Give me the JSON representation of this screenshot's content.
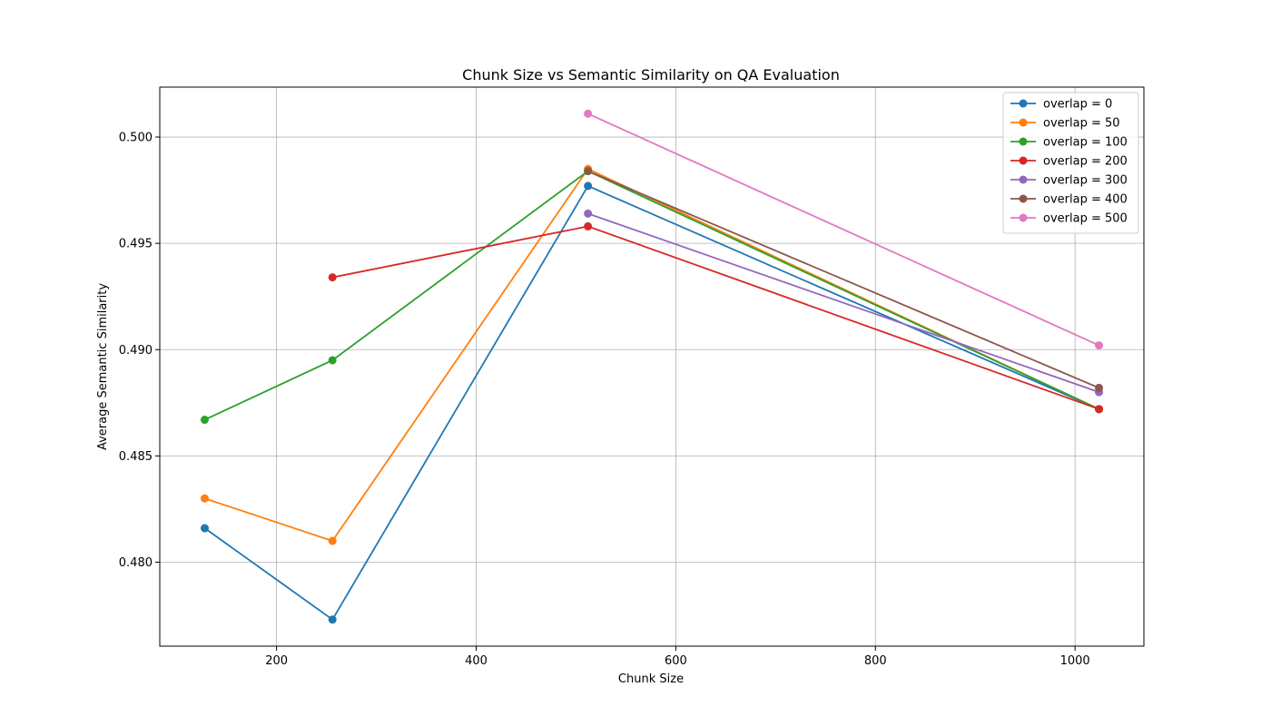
{
  "chart_data": {
    "type": "line",
    "title": "Chunk Size vs Semantic Similarity on QA Evaluation",
    "xlabel": "Chunk Size",
    "ylabel": "Average Semantic Similarity",
    "xlim": [
      83,
      1069
    ],
    "ylim": [
      0.47605,
      0.50235
    ],
    "xticks": [
      200,
      400,
      600,
      800,
      1000
    ],
    "xtick_labels": [
      "200",
      "400",
      "600",
      "800",
      "1000"
    ],
    "yticks": [
      0.48,
      0.485,
      0.49,
      0.495,
      0.5
    ],
    "ytick_labels": [
      "0.480",
      "0.485",
      "0.490",
      "0.495",
      "0.500"
    ],
    "grid": true,
    "legend_position": "top-right",
    "series": [
      {
        "name": "overlap = 0",
        "color": "#1f77b4",
        "x": [
          128,
          256,
          512,
          1024
        ],
        "y": [
          0.4816,
          0.4773,
          0.4977,
          0.4872
        ]
      },
      {
        "name": "overlap = 50",
        "color": "#ff7f0e",
        "x": [
          128,
          256,
          512,
          1024
        ],
        "y": [
          0.483,
          0.481,
          0.4985,
          0.4872
        ]
      },
      {
        "name": "overlap = 100",
        "color": "#2ca02c",
        "x": [
          128,
          256,
          512,
          1024
        ],
        "y": [
          0.4867,
          0.4895,
          0.4984,
          0.4872
        ]
      },
      {
        "name": "overlap = 200",
        "color": "#d62728",
        "x": [
          256,
          512,
          1024
        ],
        "y": [
          0.4934,
          0.4958,
          0.4872
        ]
      },
      {
        "name": "overlap = 300",
        "color": "#9467bd",
        "x": [
          512,
          1024
        ],
        "y": [
          0.4964,
          0.488
        ]
      },
      {
        "name": "overlap = 400",
        "color": "#8c564b",
        "x": [
          512,
          1024
        ],
        "y": [
          0.4984,
          0.4882
        ]
      },
      {
        "name": "overlap = 500",
        "color": "#e377c2",
        "x": [
          512,
          1024
        ],
        "y": [
          0.5011,
          0.4902
        ]
      }
    ]
  }
}
